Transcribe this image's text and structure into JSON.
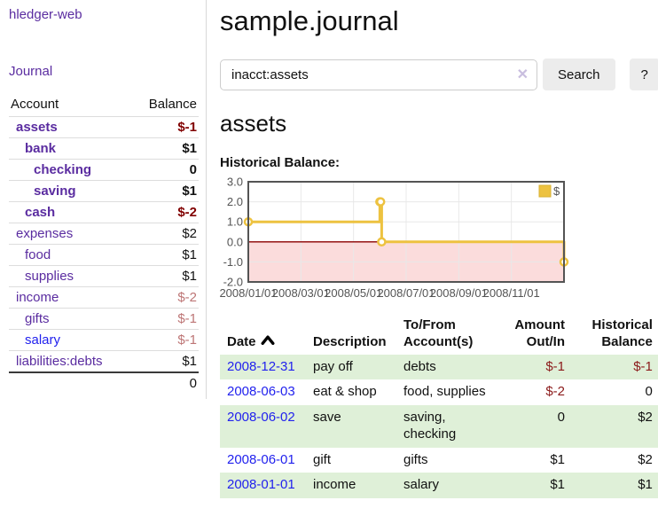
{
  "app": {
    "brand": "hledger-web"
  },
  "sidebar": {
    "nav_journal": "Journal",
    "accounts_table": {
      "headers": {
        "account": "Account",
        "balance": "Balance"
      },
      "rows": [
        {
          "account": "assets",
          "depth": 1,
          "bold": true,
          "balance": "$-1",
          "negative": true,
          "dim_negative": false,
          "link_blue": false
        },
        {
          "account": "bank",
          "depth": 2,
          "bold": true,
          "balance": "$1",
          "negative": false,
          "dim_negative": false,
          "link_blue": false
        },
        {
          "account": "checking",
          "depth": 3,
          "bold": true,
          "balance": "0",
          "negative": false,
          "dim_negative": false,
          "link_blue": false
        },
        {
          "account": "saving",
          "depth": 3,
          "bold": true,
          "balance": "$1",
          "negative": false,
          "dim_negative": false,
          "link_blue": false
        },
        {
          "account": "cash",
          "depth": 2,
          "bold": true,
          "balance": "$-2",
          "negative": true,
          "dim_negative": false,
          "link_blue": false
        },
        {
          "account": "expenses",
          "depth": 1,
          "bold": false,
          "balance": "$2",
          "negative": false,
          "dim_negative": false,
          "link_blue": false
        },
        {
          "account": "food",
          "depth": 2,
          "bold": false,
          "balance": "$1",
          "negative": false,
          "dim_negative": false,
          "link_blue": false
        },
        {
          "account": "supplies",
          "depth": 2,
          "bold": false,
          "balance": "$1",
          "negative": false,
          "dim_negative": false,
          "link_blue": false
        },
        {
          "account": "income",
          "depth": 1,
          "bold": false,
          "balance": "$-2",
          "negative": true,
          "dim_negative": true,
          "link_blue": false
        },
        {
          "account": "gifts",
          "depth": 2,
          "bold": false,
          "balance": "$-1",
          "negative": true,
          "dim_negative": true,
          "link_blue": false
        },
        {
          "account": "salary",
          "depth": 2,
          "bold": false,
          "balance": "$-1",
          "negative": true,
          "dim_negative": true,
          "link_blue": true
        },
        {
          "account": "liabilities:debts",
          "depth": 1,
          "bold": false,
          "balance": "$1",
          "negative": false,
          "dim_negative": false,
          "link_blue": false
        }
      ],
      "total": "0"
    }
  },
  "header": {
    "title": "sample.journal"
  },
  "search": {
    "value": "inacct:assets",
    "clear_icon": "✕",
    "button_label": "Search",
    "help_label": "?"
  },
  "account_page": {
    "heading": "assets",
    "chart_label": "Historical Balance:"
  },
  "chart_data": {
    "type": "line",
    "step": true,
    "title": "Historical Balance",
    "xlabel": "",
    "ylabel": "",
    "xlim": [
      0,
      12
    ],
    "ylim": [
      -2,
      3
    ],
    "grid": true,
    "legend_position": "top-right",
    "series": [
      {
        "name": "$",
        "color": "#edc240",
        "points": [
          {
            "date": "2008-01-01",
            "x": 0,
            "y": 1
          },
          {
            "date": "2008-06-01",
            "x": 5.0,
            "y": 2
          },
          {
            "date": "2008-06-02",
            "x": 5.03,
            "y": 2
          },
          {
            "date": "2008-06-03",
            "x": 5.07,
            "y": 0
          },
          {
            "date": "2008-12-31",
            "x": 12,
            "y": -1
          }
        ]
      }
    ],
    "yticks": [
      {
        "v": 3,
        "label": "3.0"
      },
      {
        "v": 2,
        "label": "2.0"
      },
      {
        "v": 1,
        "label": "1.0"
      },
      {
        "v": 0,
        "label": "0.0"
      },
      {
        "v": -1,
        "label": "-1.0"
      },
      {
        "v": -2,
        "label": "-2.0"
      }
    ],
    "xticks": [
      {
        "v": 0,
        "label": "2008/01/01"
      },
      {
        "v": 2,
        "label": "2008/03/01"
      },
      {
        "v": 4,
        "label": "2008/05/01"
      },
      {
        "v": 6,
        "label": "2008/07/01"
      },
      {
        "v": 8,
        "label": "2008/09/01"
      },
      {
        "v": 10,
        "label": "2008/11/01"
      }
    ],
    "negative_region_color": "#fbdcdc",
    "zero_line_color": "#8b0000",
    "grid_color": "#e8e8e8",
    "border_color": "#545454",
    "tick_color": "#545454",
    "legend": {
      "label": "$",
      "swatch_color": "#edc240",
      "swatch_border": "#d8b135"
    }
  },
  "register": {
    "headers": [
      {
        "label": "Date",
        "align": "left",
        "sort": "asc"
      },
      {
        "label": "Description",
        "align": "left"
      },
      {
        "label": "To/From Account(s)",
        "align": "left"
      },
      {
        "label": "Amount Out/In",
        "align": "right"
      },
      {
        "label": "Historical Balance",
        "align": "right"
      }
    ],
    "rows": [
      {
        "date": "2008-12-31",
        "description": "pay off",
        "accounts": "debts",
        "amount": "$-1",
        "amount_negative": true,
        "balance": "$-1",
        "balance_negative": true
      },
      {
        "date": "2008-06-03",
        "description": "eat & shop",
        "accounts": "food, supplies",
        "amount": "$-2",
        "amount_negative": true,
        "balance": "0",
        "balance_negative": false
      },
      {
        "date": "2008-06-02",
        "description": "save",
        "accounts": "saving, checking",
        "amount": "0",
        "amount_negative": false,
        "balance": "$2",
        "balance_negative": false
      },
      {
        "date": "2008-06-01",
        "description": "gift",
        "accounts": "gifts",
        "amount": "$1",
        "amount_negative": false,
        "balance": "$2",
        "balance_negative": false
      },
      {
        "date": "2008-01-01",
        "description": "income",
        "accounts": "salary",
        "amount": "$1",
        "amount_negative": false,
        "balance": "$1",
        "balance_negative": false
      }
    ]
  },
  "colors": {
    "link_purple": "#5a2ca0",
    "link_blue": "#2222ee",
    "negative_strong": "#800000",
    "negative_dim": "#bd7575",
    "negative_table": "#8b1a1a",
    "row_stripe_green": "#dff0d8",
    "button_bg": "#ececec",
    "chart_yellow": "#edc240"
  }
}
